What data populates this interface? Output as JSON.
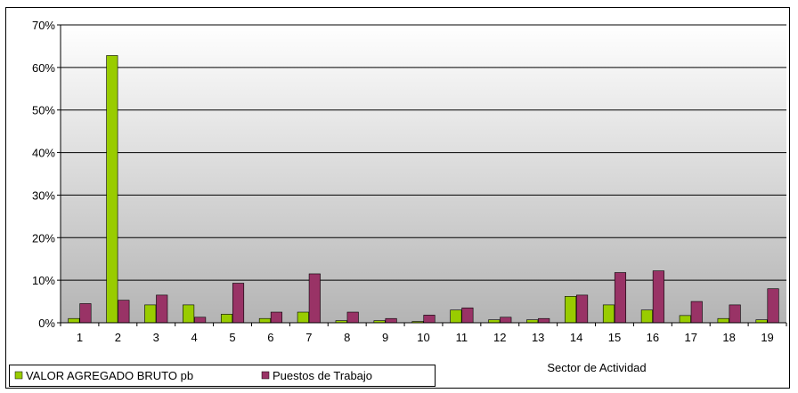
{
  "chart_data": {
    "type": "bar",
    "title": "",
    "xlabel": "Sector de Actividad",
    "ylabel": "",
    "categories": [
      "1",
      "2",
      "3",
      "4",
      "5",
      "6",
      "7",
      "8",
      "9",
      "10",
      "11",
      "12",
      "13",
      "14",
      "15",
      "16",
      "17",
      "18",
      "19"
    ],
    "ylim": [
      0,
      70
    ],
    "yticks": [
      "0%",
      "10%",
      "20%",
      "30%",
      "40%",
      "50%",
      "60%",
      "70%"
    ],
    "grid": true,
    "legend_position": "bottom-left",
    "series": [
      {
        "name": "VALOR AGREGADO BRUTO pb",
        "color": "#99CC00",
        "values": [
          1.0,
          62.8,
          4.2,
          4.2,
          2.0,
          1.0,
          2.5,
          0.5,
          0.5,
          0.3,
          3.0,
          0.7,
          0.7,
          6.2,
          4.2,
          3.0,
          1.7,
          1.0,
          0.7
        ]
      },
      {
        "name": "Puestos de Trabajo",
        "color": "#993366",
        "values": [
          4.5,
          5.3,
          6.5,
          1.3,
          9.3,
          2.5,
          11.5,
          2.5,
          1.0,
          1.8,
          3.5,
          1.3,
          1.0,
          6.5,
          11.8,
          12.2,
          5.0,
          4.2,
          8.0
        ]
      }
    ]
  }
}
